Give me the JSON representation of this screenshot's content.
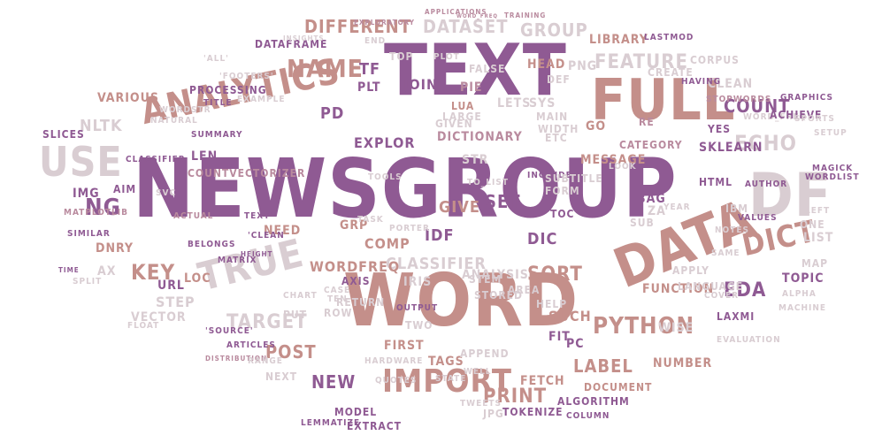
{
  "palette": {
    "purple": "#8f5a93",
    "rose": "#c48f8a",
    "mauve": "#b98a9e",
    "grey": "#d9cdd2",
    "plum": "#a36f97"
  },
  "words": [
    {
      "text": "newsgroup",
      "color": "purple"
    },
    {
      "text": "text",
      "color": "purple"
    },
    {
      "text": "word",
      "color": "rose"
    },
    {
      "text": "full",
      "color": "rose"
    },
    {
      "text": "df",
      "color": "grey"
    },
    {
      "text": "analytics",
      "color": "rose"
    },
    {
      "text": "data",
      "color": "rose"
    },
    {
      "text": "use",
      "color": "grey"
    },
    {
      "text": "true",
      "color": "grey"
    },
    {
      "text": "import",
      "color": "rose"
    },
    {
      "text": "name",
      "color": "rose"
    },
    {
      "text": "dict",
      "color": "rose"
    },
    {
      "text": "echo",
      "color": "grey"
    },
    {
      "text": "ng",
      "color": "purple"
    },
    {
      "text": "key",
      "color": "rose"
    },
    {
      "text": "python",
      "color": "rose"
    },
    {
      "text": "dataset",
      "color": "grey"
    },
    {
      "text": "different",
      "color": "rose"
    },
    {
      "text": "feature",
      "color": "grey"
    },
    {
      "text": "count",
      "color": "purple"
    },
    {
      "text": "classifier",
      "color": "grey"
    },
    {
      "text": "sort",
      "color": "rose"
    },
    {
      "text": "target",
      "color": "grey"
    },
    {
      "text": "label",
      "color": "rose"
    },
    {
      "text": "post",
      "color": "rose"
    },
    {
      "text": "new",
      "color": "purple"
    },
    {
      "text": "print",
      "color": "rose"
    },
    {
      "text": "group",
      "color": "grey"
    },
    {
      "text": "set",
      "color": "purple"
    },
    {
      "text": "eda",
      "color": "purple"
    },
    {
      "text": "clean",
      "color": "grey"
    },
    {
      "text": "list",
      "color": "grey"
    },
    {
      "text": "nltk",
      "color": "grey"
    },
    {
      "text": "pd",
      "color": "purple"
    },
    {
      "text": "dictionary",
      "color": "mauve"
    },
    {
      "text": "wordfreq",
      "color": "rose"
    },
    {
      "text": "analysis",
      "color": "grey"
    },
    {
      "text": "idf",
      "color": "purple"
    },
    {
      "text": "give",
      "color": "rose"
    },
    {
      "text": "library",
      "color": "rose"
    },
    {
      "text": "corpus",
      "color": "grey"
    },
    {
      "text": "dnry",
      "color": "rose"
    },
    {
      "text": "ax",
      "color": "grey"
    },
    {
      "text": "step",
      "color": "grey"
    },
    {
      "text": "such",
      "color": "rose"
    },
    {
      "text": "number",
      "color": "rose"
    },
    {
      "text": "function",
      "color": "rose"
    },
    {
      "text": "language",
      "color": "grey"
    },
    {
      "text": "topic",
      "color": "purple"
    },
    {
      "text": "map",
      "color": "grey"
    },
    {
      "text": "ibm",
      "color": "grey"
    },
    {
      "text": "sklearn",
      "color": "purple"
    },
    {
      "text": "html",
      "color": "purple"
    },
    {
      "text": "category",
      "color": "mauve"
    },
    {
      "text": "message",
      "color": "rose"
    },
    {
      "text": "explor",
      "color": "purple"
    },
    {
      "text": "len",
      "color": "purple"
    },
    {
      "text": "tf",
      "color": "purple"
    },
    {
      "text": "join",
      "color": "purple"
    },
    {
      "text": "dataframe",
      "color": "purple"
    },
    {
      "text": "processing",
      "color": "purple"
    },
    {
      "text": "various",
      "color": "rose"
    },
    {
      "text": "countvectorizer",
      "color": "mauve"
    },
    {
      "text": "lets",
      "color": "grey"
    },
    {
      "text": "png",
      "color": "grey"
    },
    {
      "text": "head",
      "color": "rose"
    },
    {
      "text": "sys",
      "color": "grey"
    },
    {
      "text": "go",
      "color": "rose"
    },
    {
      "text": "create",
      "color": "grey"
    },
    {
      "text": "yes",
      "color": "purple"
    },
    {
      "text": "re",
      "color": "mauve"
    },
    {
      "text": "sub",
      "color": "grey"
    },
    {
      "text": "bag",
      "color": "purple"
    },
    {
      "text": "za",
      "color": "grey"
    },
    {
      "text": "dic",
      "color": "purple"
    },
    {
      "text": "iris",
      "color": "grey"
    },
    {
      "text": "comp",
      "color": "rose"
    },
    {
      "text": "grp",
      "color": "rose"
    },
    {
      "text": "loc",
      "color": "rose"
    },
    {
      "text": "need",
      "color": "rose"
    },
    {
      "text": "url",
      "color": "purple"
    },
    {
      "text": "vector",
      "color": "grey"
    },
    {
      "text": "fetch",
      "color": "rose"
    },
    {
      "text": "first",
      "color": "rose"
    },
    {
      "text": "tags",
      "color": "rose"
    },
    {
      "text": "tokenize",
      "color": "purple"
    },
    {
      "text": "model",
      "color": "purple"
    },
    {
      "text": "algorithm",
      "color": "purple"
    },
    {
      "text": "document",
      "color": "rose"
    },
    {
      "text": "apply",
      "color": "grey"
    },
    {
      "text": "fit",
      "color": "purple"
    },
    {
      "text": "pc",
      "color": "purple"
    },
    {
      "text": "summary",
      "color": "purple"
    },
    {
      "text": "title",
      "color": "purple"
    },
    {
      "text": "matrix",
      "color": "purple"
    },
    {
      "text": "axis",
      "color": "purple"
    },
    {
      "text": "output",
      "color": "purple"
    },
    {
      "text": "include",
      "color": "purple"
    },
    {
      "text": "toc",
      "color": "purple"
    },
    {
      "text": "str",
      "color": "grey"
    },
    {
      "text": "return",
      "color": "grey"
    },
    {
      "text": "stored",
      "color": "grey"
    },
    {
      "text": "stem",
      "color": "grey"
    },
    {
      "text": "help",
      "color": "grey"
    },
    {
      "text": "two",
      "color": "grey"
    },
    {
      "text": "area",
      "color": "grey"
    },
    {
      "text": "plt",
      "color": "purple"
    },
    {
      "text": "lua",
      "color": "rose"
    },
    {
      "text": "pie",
      "color": "mauve"
    },
    {
      "text": "false",
      "color": "grey"
    },
    {
      "text": "large",
      "color": "grey"
    },
    {
      "text": "width",
      "color": "grey"
    },
    {
      "text": "main",
      "color": "grey"
    },
    {
      "text": "etc",
      "color": "grey"
    },
    {
      "text": "def",
      "color": "grey"
    },
    {
      "text": "top",
      "color": "grey"
    },
    {
      "text": "end",
      "color": "grey"
    },
    {
      "text": "plot",
      "color": "grey"
    },
    {
      "text": "insights",
      "color": "grey"
    },
    {
      "text": "exploratory",
      "color": "mauve"
    },
    {
      "text": "applications",
      "color": "mauve"
    },
    {
      "text": "training",
      "color": "mauve"
    },
    {
      "text": "lastmod",
      "color": "purple"
    },
    {
      "text": "word_freq",
      "color": "mauve"
    },
    {
      "text": "stopwords",
      "color": "mauve"
    },
    {
      "text": "slices",
      "color": "purple"
    },
    {
      "text": "classifier",
      "color": "purple"
    },
    {
      "text": "aim",
      "color": "purple"
    },
    {
      "text": "img",
      "color": "purple"
    },
    {
      "text": "matplotlib",
      "color": "mauve"
    },
    {
      "text": "similar",
      "color": "purple"
    },
    {
      "text": "svc",
      "color": "grey"
    },
    {
      "text": "wordstr",
      "color": "grey"
    },
    {
      "text": "natural",
      "color": "grey"
    },
    {
      "text": "'all'",
      "color": "grey"
    },
    {
      "text": "text'",
      "color": "purple"
    },
    {
      "text": "'clean",
      "color": "purple"
    },
    {
      "text": "belongs",
      "color": "purple"
    },
    {
      "text": "height",
      "color": "purple"
    },
    {
      "text": "actual",
      "color": "mauve"
    },
    {
      "text": "'source'",
      "color": "purple"
    },
    {
      "text": "articles",
      "color": "purple"
    },
    {
      "text": "distribution",
      "color": "mauve"
    },
    {
      "text": "split",
      "color": "grey"
    },
    {
      "text": "time",
      "color": "purple"
    },
    {
      "text": "float",
      "color": "grey"
    },
    {
      "text": "chart",
      "color": "grey"
    },
    {
      "text": "put",
      "color": "grey"
    },
    {
      "text": "next",
      "color": "grey"
    },
    {
      "text": "range",
      "color": "grey"
    },
    {
      "text": "author",
      "color": "purple"
    },
    {
      "text": "setup",
      "color": "grey"
    },
    {
      "text": "word_freq",
      "color": "grey"
    },
    {
      "text": "values",
      "color": "purple"
    },
    {
      "text": "one",
      "color": "grey"
    },
    {
      "text": "left",
      "color": "grey"
    },
    {
      "text": "same",
      "color": "grey"
    },
    {
      "text": "cover",
      "color": "grey"
    },
    {
      "text": "laxmi",
      "color": "purple"
    },
    {
      "text": "achieve",
      "color": "purple"
    },
    {
      "text": "magick",
      "color": "purple"
    },
    {
      "text": "wordlist",
      "color": "purple"
    },
    {
      "text": "graphics",
      "color": "purple"
    },
    {
      "text": "having",
      "color": "purple"
    },
    {
      "text": "jpg",
      "color": "grey"
    },
    {
      "text": "sports",
      "color": "grey"
    },
    {
      "text": "subtitle",
      "color": "grey"
    },
    {
      "text": "form",
      "color": "grey"
    },
    {
      "text": "look",
      "color": "grey"
    },
    {
      "text": "state",
      "color": "grey"
    },
    {
      "text": "well",
      "color": "grey"
    },
    {
      "text": "hardware",
      "color": "grey"
    },
    {
      "text": "append",
      "color": "grey"
    },
    {
      "text": "quotes",
      "color": "grey"
    },
    {
      "text": "extract",
      "color": "purple"
    },
    {
      "text": "lemmatize",
      "color": "purple"
    },
    {
      "text": "column",
      "color": "purple"
    },
    {
      "text": "year",
      "color": "grey"
    },
    {
      "text": "row",
      "color": "grey"
    },
    {
      "text": "case",
      "color": "grey"
    },
    {
      "text": "ten",
      "color": "grey"
    },
    {
      "text": "tools",
      "color": "grey"
    },
    {
      "text": "to_list",
      "color": "grey"
    },
    {
      "text": "given",
      "color": "grey"
    },
    {
      "text": "task",
      "color": "grey"
    },
    {
      "text": "porter",
      "color": "grey"
    },
    {
      "text": "tweets",
      "color": "grey"
    },
    {
      "text": "wise",
      "color": "grey"
    },
    {
      "text": "notes",
      "color": "grey"
    },
    {
      "text": "machine",
      "color": "grey"
    },
    {
      "text": "alpha",
      "color": "grey"
    },
    {
      "text": "evaluation",
      "color": "grey"
    },
    {
      "text": "'footers'",
      "color": "grey"
    },
    {
      "text": "example",
      "color": "grey"
    }
  ]
}
